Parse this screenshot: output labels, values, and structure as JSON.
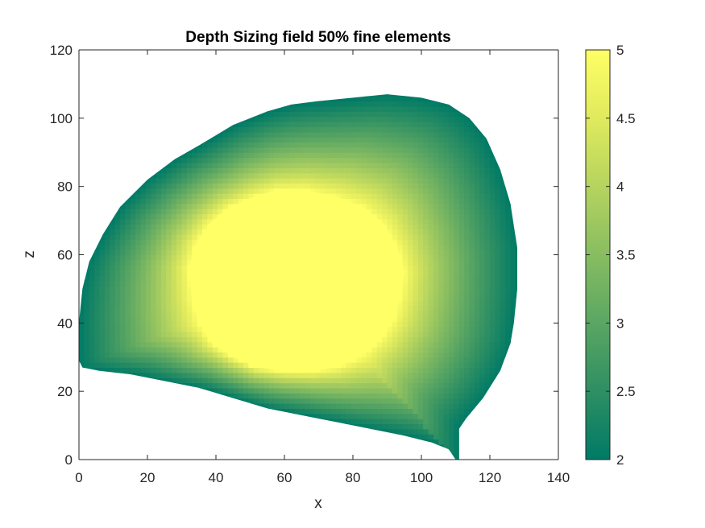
{
  "chart_data": {
    "type": "heatmap",
    "title": "Depth Sizing field 50% fine elements",
    "xlabel": "x",
    "ylabel": "z",
    "xlim": [
      0,
      140
    ],
    "ylim": [
      0,
      120
    ],
    "x_ticks": [
      0,
      20,
      40,
      60,
      80,
      100,
      120,
      140
    ],
    "y_ticks": [
      0,
      20,
      40,
      60,
      80,
      100,
      120
    ],
    "grid": false,
    "colorbar": {
      "clim": [
        2,
        5
      ],
      "ticks": [
        2,
        2.5,
        3,
        3.5,
        4,
        4.5,
        5
      ],
      "tick_labels": [
        "2",
        "2.5",
        "3",
        "3.5",
        "4",
        "4.5",
        "5"
      ],
      "colormap": [
        "#007a66",
        "#2e8f63",
        "#5aa663",
        "#88bd61",
        "#b5d45f",
        "#e0ea5d",
        "#ffff66"
      ],
      "placement": "right"
    },
    "domain_boundary": [
      [
        0,
        29
      ],
      [
        1,
        27
      ],
      [
        6,
        26
      ],
      [
        15,
        25
      ],
      [
        25,
        23
      ],
      [
        35,
        21
      ],
      [
        45,
        18
      ],
      [
        55,
        15
      ],
      [
        65,
        13
      ],
      [
        75,
        11
      ],
      [
        85,
        9
      ],
      [
        95,
        7
      ],
      [
        103,
        5
      ],
      [
        108,
        3
      ],
      [
        110,
        0
      ],
      [
        111,
        0
      ],
      [
        111,
        9
      ],
      [
        113,
        12
      ],
      [
        118,
        18
      ],
      [
        123,
        26
      ],
      [
        126,
        34
      ],
      [
        127,
        40
      ],
      [
        128,
        50
      ],
      [
        128,
        62
      ],
      [
        126,
        75
      ],
      [
        123,
        85
      ],
      [
        119,
        94
      ],
      [
        114,
        100
      ],
      [
        108,
        104
      ],
      [
        100,
        106
      ],
      [
        90,
        107
      ],
      [
        80,
        106
      ],
      [
        70,
        105
      ],
      [
        62,
        104
      ],
      [
        55,
        102
      ],
      [
        45,
        98
      ],
      [
        35,
        92
      ],
      [
        28,
        88
      ],
      [
        20,
        82
      ],
      [
        12,
        74
      ],
      [
        7,
        66
      ],
      [
        3,
        58
      ],
      [
        1,
        50
      ],
      [
        0,
        40
      ],
      [
        0,
        29
      ]
    ],
    "core_region": {
      "value": 5,
      "boundary": [
        [
          32,
          56
        ],
        [
          34,
          63
        ],
        [
          38,
          69
        ],
        [
          44,
          74
        ],
        [
          51,
          77
        ],
        [
          58,
          79
        ],
        [
          66,
          79
        ],
        [
          75,
          77
        ],
        [
          83,
          74
        ],
        [
          89,
          69
        ],
        [
          93,
          62
        ],
        [
          95,
          55
        ],
        [
          94,
          48
        ],
        [
          92,
          41
        ],
        [
          88,
          35
        ],
        [
          82,
          30
        ],
        [
          75,
          27
        ],
        [
          68,
          26
        ],
        [
          60,
          26
        ],
        [
          52,
          27
        ],
        [
          45,
          30
        ],
        [
          39,
          34
        ],
        [
          35,
          40
        ],
        [
          33,
          47
        ],
        [
          32,
          56
        ]
      ]
    },
    "field": {
      "center": [
        63,
        52
      ],
      "core_value": 5,
      "edge_value": 2,
      "description": "value decreases smoothly from 5 at the core boundary to about 2 at the outer domain boundary"
    }
  }
}
